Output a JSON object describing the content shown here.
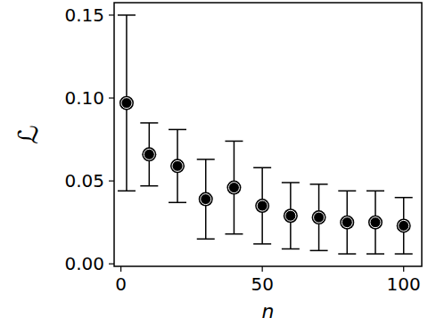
{
  "chart_data": {
    "type": "scatter",
    "xlabel": "n",
    "ylabel": "ℒ",
    "x": [
      2,
      10,
      20,
      30,
      40,
      50,
      60,
      70,
      80,
      90,
      100
    ],
    "values": [
      0.097,
      0.066,
      0.059,
      0.039,
      0.046,
      0.035,
      0.029,
      0.028,
      0.025,
      0.025,
      0.023
    ],
    "error": [
      0.053,
      0.019,
      0.022,
      0.024,
      0.028,
      0.023,
      0.02,
      0.02,
      0.019,
      0.019,
      0.017
    ],
    "color": "#000000",
    "marker": "o",
    "xlim": [
      -2.4,
      106.4
    ],
    "xticks": [
      0,
      50,
      100
    ],
    "ylim": [
      -0.0015,
      0.1575
    ],
    "yticks": [
      {
        "value": 0,
        "label": "0.00"
      },
      {
        "value": 0.05,
        "label": "0.05"
      },
      {
        "value": 0.1,
        "label": "0.10"
      },
      {
        "value": 0.15,
        "label": "0.15"
      }
    ],
    "grid": false
  }
}
